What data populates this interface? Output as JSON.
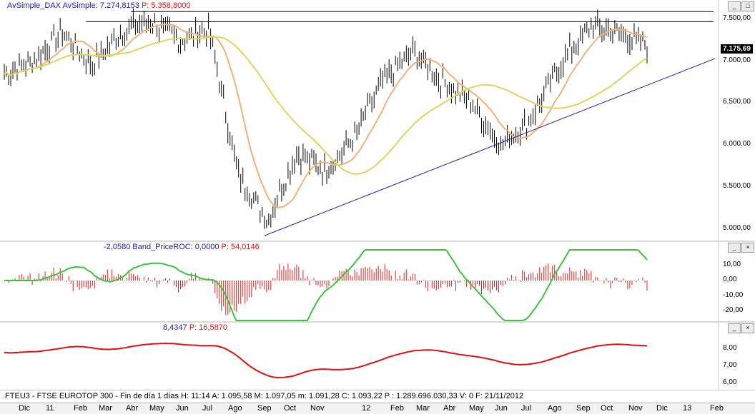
{
  "panels": {
    "price": {
      "legend_name": "AvSimple_DAX AvSimple:",
      "legend_value": "7.274,8153",
      "legend_p": "P: 5.358,8000",
      "last_price": "7.175,69",
      "y_ticks": [
        "7.500,00",
        "7.000,00",
        "6.500,00",
        "6.000,00",
        "5.500,00",
        "5.000,00"
      ],
      "y_values": [
        7500,
        7000,
        6500,
        6000,
        5500,
        5000
      ],
      "ylim": [
        4870,
        7660
      ]
    },
    "roc": {
      "legend_value": "-2,0580",
      "legend_name": "Band_PriceROC: 0,0000",
      "legend_p": "P: 54,0146",
      "y_ticks": [
        "10,00",
        "0,00",
        "-10,00",
        "-20,00"
      ],
      "y_values": [
        10,
        0,
        -10,
        -20
      ],
      "ylim": [
        -26,
        20
      ]
    },
    "lower": {
      "legend_value": "8,4347",
      "legend_p": "P: 16,5870",
      "y_ticks": [
        "8,00",
        "7,00",
        "6,00"
      ],
      "y_values": [
        8,
        7,
        6
      ],
      "ylim": [
        5.7,
        9.1
      ]
    }
  },
  "window_buttons": {
    "minimize": "_",
    "restore": "□",
    "close": "×"
  },
  "status": {
    "text": ".FTEU3 - FTSE EUROTOP 300 - Fin de día 1 días H: 11:14  A: 1.095,58  M: 1.097,05  m: 1.091,28  C: 1.093,22  P : 1.289.696.030,33  V: 0  F: 21/11/2012"
  },
  "x_axis": {
    "labels": [
      "Dic",
      "11",
      "Feb",
      "Mar",
      "Abr",
      "May",
      "Jun",
      "Jul",
      "Ago",
      "Sep",
      "Oct",
      "Nov",
      "12",
      "Feb",
      "Mar",
      "Abr",
      "May",
      "Jun",
      "Jul",
      "Ago",
      "Sep",
      "Oct",
      "Nov",
      "Dic",
      "13",
      "Feb"
    ]
  },
  "colors": {
    "price_bars": "#000000",
    "ma_fast": "#f4b07a",
    "ma_slow": "#d8d860",
    "trendline": "#1a1aa8",
    "resistance": "#000000",
    "roc_bars": "#e02020",
    "roc_line": "#3cc23c",
    "lower_line": "#e01010",
    "legend_value": "#1a1aa8",
    "legend_p": "#e01010"
  },
  "chart_data": {
    "type": "line",
    "x": [
      "Dic",
      "11",
      "Feb",
      "Mar",
      "Abr",
      "May",
      "Jun",
      "Jul",
      "Ago",
      "Sep",
      "Oct",
      "Nov",
      "12",
      "Feb",
      "Mar",
      "Abr",
      "May",
      "Jun",
      "Jul",
      "Ago",
      "Sep",
      "Oct",
      "Nov"
    ],
    "series": [
      {
        "values": [
          6850,
          7000,
          7350,
          6950,
          7350,
          7480,
          7250,
          7380,
          5650,
          5100,
          5900,
          5700,
          6100,
          6800,
          7100,
          6750,
          6500,
          6000,
          6300,
          6950,
          7400,
          7350,
          7175
        ]
      }
    ],
    "ylim": [
      4870,
      7660
    ]
  }
}
